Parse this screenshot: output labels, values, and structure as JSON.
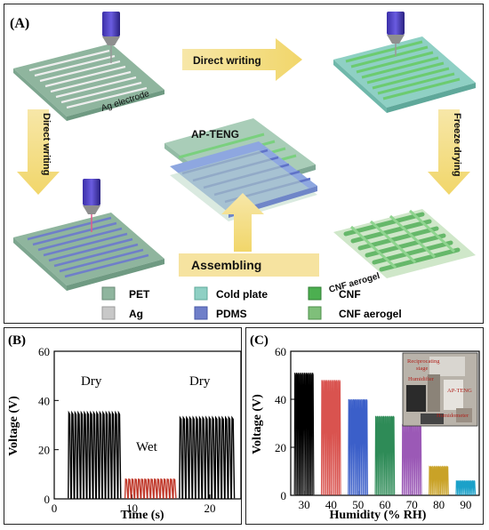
{
  "panel_a": {
    "label": "(A)",
    "steps": {
      "direct_writing_top": "Direct writing",
      "direct_writing_left": "Direct writing",
      "freeze_drying": "Freeze drying",
      "assembling": "Assembling"
    },
    "labels": {
      "ag_electrode": "Ag electrode",
      "ap_teng": "AP-TENG",
      "cnf_aerogel": "CNF aerogel"
    },
    "legend": [
      {
        "name": "PET",
        "color": "#8fb59e"
      },
      {
        "name": "Cold plate",
        "color": "#8fd0c4"
      },
      {
        "name": "CNF",
        "color": "#4caf50"
      },
      {
        "name": "Ag",
        "color": "#c8c8c8"
      },
      {
        "name": "PDMS",
        "color": "#6f7fc9"
      },
      {
        "name": "CNF aerogel",
        "color": "#7fbf7a"
      }
    ]
  },
  "chart_data": [
    {
      "type": "line",
      "panel_label": "(B)",
      "xlabel": "Time (s)",
      "ylabel": "Voltage (V)",
      "xlim": [
        0,
        24
      ],
      "ylim": [
        0,
        60
      ],
      "xticks": [
        0,
        10,
        20
      ],
      "yticks": [
        0,
        20,
        40,
        60
      ],
      "annotations": [
        "Dry",
        "Wet",
        "Dry"
      ],
      "segments": [
        {
          "x_start": 1.8,
          "x_end": 8.6,
          "peak": 35,
          "cycles": 17,
          "color": "#000000"
        },
        {
          "x_start": 9.1,
          "x_end": 15.7,
          "peak": 8,
          "cycles": 16,
          "color": "#c0392b"
        },
        {
          "x_start": 16.1,
          "x_end": 23.2,
          "peak": 33,
          "cycles": 17,
          "color": "#000000"
        }
      ]
    },
    {
      "type": "line",
      "panel_label": "(C)",
      "xlabel": "Humidity (% RH)",
      "ylabel": "Voltage (V)",
      "xlim": [
        25,
        95
      ],
      "ylim": [
        0,
        60
      ],
      "xticks": [
        30,
        40,
        50,
        60,
        70,
        80,
        90
      ],
      "yticks": [
        0,
        20,
        40,
        60
      ],
      "inset_labels": [
        "Reciprocating stage",
        "Humidifier",
        "AP-TENG",
        "Humidometer"
      ],
      "series": [
        {
          "humidity": 30,
          "voltage": 51,
          "color": "#000000"
        },
        {
          "humidity": 40,
          "voltage": 48,
          "color": "#d9534f"
        },
        {
          "humidity": 50,
          "voltage": 40,
          "color": "#3b5fc9"
        },
        {
          "humidity": 60,
          "voltage": 33,
          "color": "#2e8b57"
        },
        {
          "humidity": 70,
          "voltage": 29,
          "color": "#9b59b6"
        },
        {
          "humidity": 80,
          "voltage": 12,
          "color": "#c9a227"
        },
        {
          "humidity": 90,
          "voltage": 6,
          "color": "#1ba1c9"
        }
      ]
    }
  ]
}
